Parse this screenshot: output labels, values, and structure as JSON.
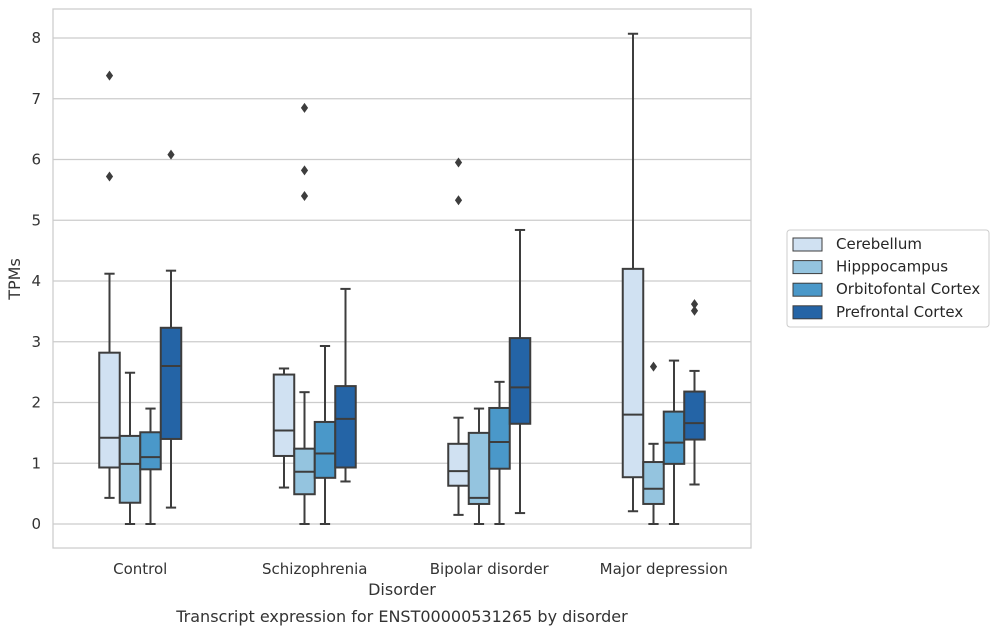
{
  "chart_data": {
    "type": "box",
    "caption": "Transcript expression for ENST00000531265 by disorder",
    "xlabel": "Disorder",
    "ylabel": "TPMs",
    "ylim": [
      -0.4,
      8.5
    ],
    "yticks": [
      0,
      1,
      2,
      3,
      4,
      5,
      6,
      7,
      8
    ],
    "grid": "horizontal",
    "legend_position": "right",
    "categories": [
      "Control",
      "Schizophrenia",
      "Bipolar disorder",
      "Major depression"
    ],
    "series": [
      {
        "name": "Cerebellum",
        "color": "#d0e1f2",
        "boxes": [
          {
            "whislo": 0.43,
            "q1": 0.93,
            "med": 1.42,
            "q3": 2.82,
            "whishi": 4.12,
            "fliers": [
              5.72,
              7.38
            ]
          },
          {
            "whislo": 0.6,
            "q1": 1.12,
            "med": 1.54,
            "q3": 2.46,
            "whishi": 2.56,
            "fliers": []
          },
          {
            "whislo": 0.15,
            "q1": 0.63,
            "med": 0.87,
            "q3": 1.32,
            "whishi": 1.75,
            "fliers": [
              5.33,
              5.95
            ]
          },
          {
            "whislo": 0.21,
            "q1": 0.77,
            "med": 1.8,
            "q3": 4.2,
            "whishi": 8.07,
            "fliers": []
          }
        ]
      },
      {
        "name": "Hipppocampus",
        "color": "#94c4df",
        "boxes": [
          {
            "whislo": 0.0,
            "q1": 0.35,
            "med": 0.99,
            "q3": 1.45,
            "whishi": 2.49,
            "fliers": []
          },
          {
            "whislo": 0.0,
            "q1": 0.49,
            "med": 0.86,
            "q3": 1.24,
            "whishi": 2.17,
            "fliers": [
              5.4,
              5.82,
              6.85
            ]
          },
          {
            "whislo": 0.0,
            "q1": 0.33,
            "med": 0.43,
            "q3": 1.5,
            "whishi": 1.9,
            "fliers": []
          },
          {
            "whislo": 0.0,
            "q1": 0.33,
            "med": 0.58,
            "q3": 1.02,
            "whishi": 1.32,
            "fliers": [
              2.59
            ]
          }
        ]
      },
      {
        "name": "Orbitofontal Cortex",
        "color": "#4a98c9",
        "boxes": [
          {
            "whislo": 0.0,
            "q1": 0.9,
            "med": 1.1,
            "q3": 1.51,
            "whishi": 1.9,
            "fliers": []
          },
          {
            "whislo": 0.0,
            "q1": 0.76,
            "med": 1.16,
            "q3": 1.68,
            "whishi": 2.93,
            "fliers": []
          },
          {
            "whislo": 0.0,
            "q1": 0.91,
            "med": 1.35,
            "q3": 1.91,
            "whishi": 2.34,
            "fliers": []
          },
          {
            "whislo": 0.0,
            "q1": 0.99,
            "med": 1.34,
            "q3": 1.85,
            "whishi": 2.69,
            "fliers": []
          }
        ]
      },
      {
        "name": "Prefrontal Cortex",
        "color": "#2464a6",
        "boxes": [
          {
            "whislo": 0.27,
            "q1": 1.4,
            "med": 2.6,
            "q3": 3.23,
            "whishi": 4.17,
            "fliers": [
              6.08
            ]
          },
          {
            "whislo": 0.7,
            "q1": 0.93,
            "med": 1.73,
            "q3": 2.27,
            "whishi": 3.87,
            "fliers": []
          },
          {
            "whislo": 0.18,
            "q1": 1.65,
            "med": 2.25,
            "q3": 3.06,
            "whishi": 4.84,
            "fliers": []
          },
          {
            "whislo": 0.65,
            "q1": 1.39,
            "med": 1.66,
            "q3": 2.18,
            "whishi": 2.52,
            "fliers": [
              3.51,
              3.62
            ]
          }
        ]
      }
    ]
  }
}
